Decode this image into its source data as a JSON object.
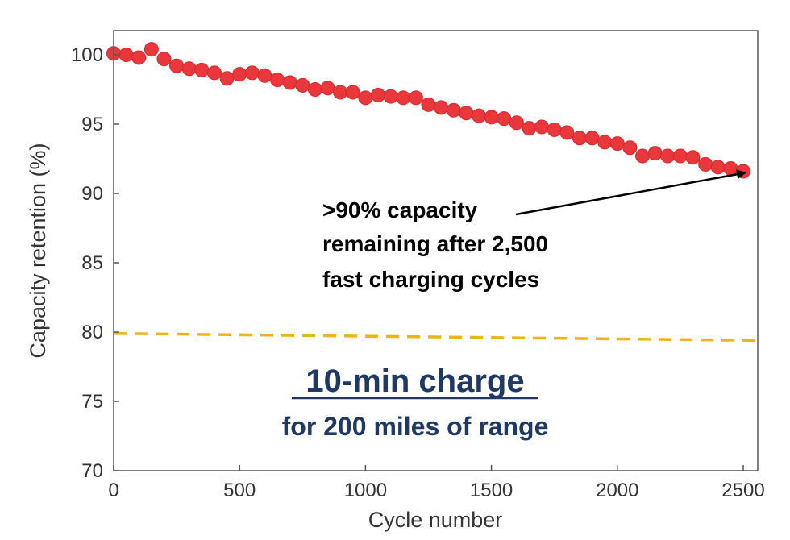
{
  "chart_data": {
    "type": "scatter",
    "title": "",
    "xlabel": "Cycle number",
    "ylabel": "Capacity retention (%)",
    "xlim": [
      0,
      2550
    ],
    "ylim": [
      70,
      103
    ],
    "xticks": [
      0,
      500,
      1000,
      1500,
      2000,
      2500
    ],
    "yticks": [
      70,
      75,
      80,
      85,
      90,
      95,
      100
    ],
    "grid": false,
    "series": [
      {
        "name": "Capacity retention",
        "color": "#e8383b",
        "marker": "circle",
        "x": [
          0,
          50,
          100,
          150,
          200,
          250,
          300,
          350,
          400,
          450,
          500,
          550,
          600,
          650,
          700,
          750,
          800,
          850,
          900,
          950,
          1000,
          1050,
          1100,
          1150,
          1200,
          1250,
          1300,
          1350,
          1400,
          1450,
          1500,
          1550,
          1600,
          1650,
          1700,
          1750,
          1800,
          1850,
          1900,
          1950,
          2000,
          2050,
          2100,
          2150,
          2200,
          2250,
          2300,
          2350,
          2400,
          2450,
          2500
        ],
        "y": [
          100.1,
          100.0,
          99.8,
          100.4,
          99.7,
          99.2,
          99.0,
          98.9,
          98.7,
          98.3,
          98.6,
          98.7,
          98.5,
          98.2,
          98.0,
          97.8,
          97.5,
          97.6,
          97.3,
          97.3,
          96.9,
          97.1,
          97.0,
          96.9,
          96.9,
          96.4,
          96.2,
          96.0,
          95.8,
          95.6,
          95.5,
          95.4,
          95.1,
          94.7,
          94.8,
          94.6,
          94.4,
          94.0,
          94.0,
          93.7,
          93.6,
          93.3,
          92.7,
          92.9,
          92.7,
          92.7,
          92.6,
          92.1,
          91.9,
          91.8,
          91.6
        ]
      },
      {
        "name": "80% threshold",
        "type": "line",
        "style": "dashed",
        "color": "#f0b21a",
        "x": [
          0,
          2550
        ],
        "y": [
          79.9,
          79.4
        ]
      }
    ],
    "annotations": [
      {
        "lines": [
          ">90% capacity",
          "remaining after 2,500",
          "fast charging cycles"
        ],
        "points_to": {
          "x": 2500,
          "y": 91.6
        }
      }
    ],
    "headline": "10-min charge",
    "subheadline": "for 200 miles of range"
  }
}
